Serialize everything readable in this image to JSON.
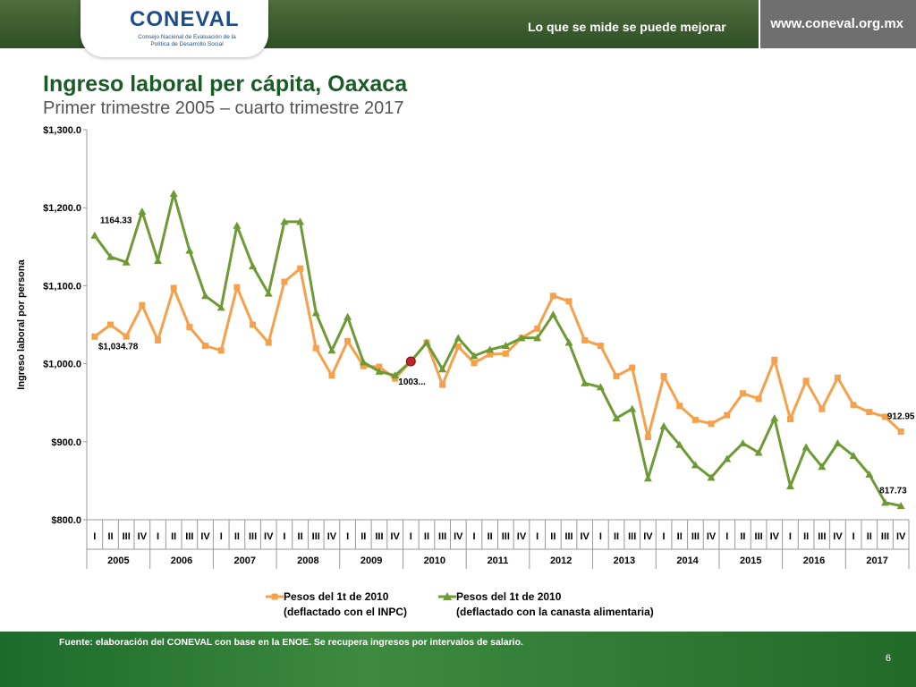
{
  "header": {
    "logo_text": "CONEVAL",
    "logo_subtitle": "Consejo Nacional de Evaluación de la Política de Desarrollo Social",
    "slogan": "Lo que se mide se puede mejorar",
    "website": "www.coneval.org.mx"
  },
  "footer": {
    "source": "Fuente: elaboración del CONEVAL con base en la ENOE. Se recupera ingresos por intervalos de salario.",
    "page_number": "6"
  },
  "colors": {
    "series_inpc": "#f7a04b",
    "series_canasta": "#6e9a36",
    "title": "#1a5c26",
    "base_point": "#c0252a"
  },
  "chart_data": {
    "type": "line",
    "title": "Ingreso laboral per cápita, Oaxaca",
    "subtitle": "Primer trimestre 2005 – cuarto trimestre 2017",
    "ylabel": "Ingreso laboral por persona",
    "xlabel": "",
    "ylim": [
      800,
      1300
    ],
    "yticks": [
      "$800.0",
      "$900.0",
      "$1,000.0",
      "$1,100.0",
      "$1,200.0",
      "$1,300.0"
    ],
    "ytick_values": [
      800,
      900,
      1000,
      1100,
      1200,
      1300
    ],
    "grid": false,
    "legend_position": "bottom",
    "quarters": [
      "I",
      "II",
      "III",
      "IV"
    ],
    "years": [
      "2005",
      "2006",
      "2007",
      "2008",
      "2009",
      "2010",
      "2011",
      "2012",
      "2013",
      "2014",
      "2015",
      "2016",
      "2017"
    ],
    "series": [
      {
        "name": "Pesos del 1t de 2010 (deflactado con el INPC)",
        "name_line1": "Pesos del 1t de 2010",
        "name_line2": "(deflactado con el INPC)",
        "marker": "square",
        "values": [
          1034.78,
          1050,
          1035,
          1075,
          1030,
          1097,
          1047,
          1023,
          1017,
          1098,
          1050,
          1027,
          1105,
          1122,
          1020,
          985,
          1029,
          997,
          996,
          981,
          1003,
          1027,
          973,
          1022,
          1001,
          1012,
          1013,
          1033,
          1045,
          1087,
          1080,
          1030,
          1023,
          984,
          995,
          906,
          984,
          946,
          928,
          923,
          934,
          962,
          955,
          1005,
          929,
          978,
          942,
          982,
          947,
          938,
          932,
          912.95
        ]
      },
      {
        "name": "Pesos del 1t de 2010 (deflactado con la canasta alimentaria)",
        "name_line1": "Pesos del 1t de 2010",
        "name_line2": "(deflactado con la canasta alimentaria)",
        "marker": "triangle",
        "values": [
          1164.33,
          1137,
          1130,
          1195,
          1132,
          1218,
          1145,
          1087,
          1072,
          1177,
          1125,
          1090,
          1182,
          1182,
          1065,
          1017,
          1060,
          1002,
          990,
          985,
          1003,
          1027,
          993,
          1033,
          1010,
          1018,
          1023,
          1033,
          1033,
          1063,
          1027,
          975,
          970,
          930,
          942,
          853,
          920,
          896,
          870,
          854,
          878,
          898,
          886,
          930,
          843,
          893,
          868,
          898,
          882,
          858,
          822,
          817.73
        ]
      }
    ],
    "annotations": [
      {
        "series": 1,
        "index": 0,
        "text": "1164.33"
      },
      {
        "series": 0,
        "index": 0,
        "text": "$1,034.78"
      },
      {
        "series": 0,
        "index": 20,
        "text": "1003..."
      },
      {
        "series": 0,
        "index": 51,
        "text": "912.95"
      },
      {
        "series": 1,
        "index": 51,
        "text": "817.73"
      }
    ],
    "base_point_index": 20
  }
}
